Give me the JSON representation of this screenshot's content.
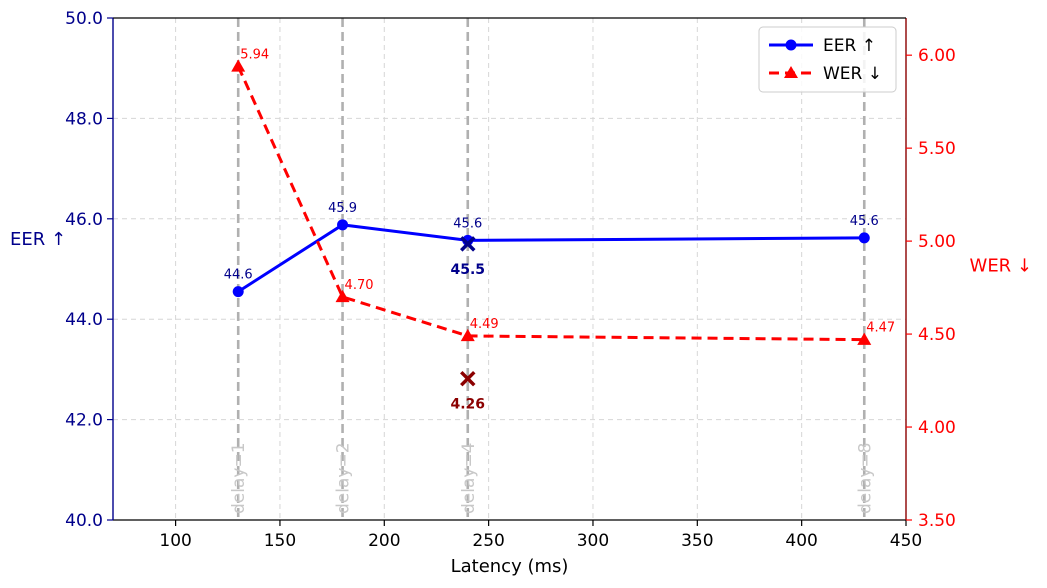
{
  "chart_data": {
    "type": "line",
    "xlabel": "Latency (ms)",
    "ylabel_left": "EER ↑",
    "ylabel_right": "WER ↓",
    "xlim": [
      70,
      450
    ],
    "ylim_left": [
      40,
      50
    ],
    "ylim_right": [
      3.5,
      6.2
    ],
    "xticks": [
      100,
      150,
      200,
      250,
      300,
      350,
      400,
      450
    ],
    "xtick_labels": [
      "100",
      "150",
      "200",
      "250",
      "300",
      "350",
      "400",
      "450"
    ],
    "yticks_left": [
      40,
      42,
      44,
      46,
      48,
      50
    ],
    "ytick_labels_left": [
      "40.0",
      "42.0",
      "44.0",
      "46.0",
      "48.0",
      "50.0"
    ],
    "yticks_right": [
      3.5,
      4.0,
      4.5,
      5.0,
      5.5,
      6.0
    ],
    "ytick_labels_right": [
      "3.50",
      "4.00",
      "4.50",
      "5.00",
      "5.50",
      "6.00"
    ],
    "grid": true,
    "legend_position": "top-right",
    "series": [
      {
        "name": "EER ↑",
        "axis": "left",
        "color": "#0000ff",
        "label_color": "#00008b",
        "marker": "circle",
        "linestyle": "solid",
        "x": [
          130,
          180,
          240,
          430
        ],
        "values": [
          44.55,
          45.88,
          45.57,
          45.62
        ],
        "labels": [
          "44.6",
          "45.9",
          "45.6",
          "45.6"
        ]
      },
      {
        "name": "WER ↓",
        "axis": "right",
        "color": "#ff0000",
        "label_color": "#ff0000",
        "marker": "triangle",
        "linestyle": "dashed",
        "x": [
          130,
          180,
          240,
          430
        ],
        "values": [
          5.94,
          4.7,
          4.49,
          4.47
        ],
        "labels": [
          "5.94",
          "4.70",
          "4.49",
          "4.47"
        ]
      }
    ],
    "delays": [
      {
        "x": 130,
        "label": "delay=1"
      },
      {
        "x": 180,
        "label": "delay=2"
      },
      {
        "x": 240,
        "label": "delay=4"
      },
      {
        "x": 430,
        "label": "delay=8"
      }
    ],
    "extra_points": [
      {
        "axis": "left",
        "x": 240,
        "value": 45.5,
        "label": "45.5",
        "color": "#00008b",
        "marker": "x"
      },
      {
        "axis": "right",
        "x": 240,
        "value": 4.26,
        "label": "4.26",
        "color": "#8b0000",
        "marker": "x"
      }
    ]
  }
}
